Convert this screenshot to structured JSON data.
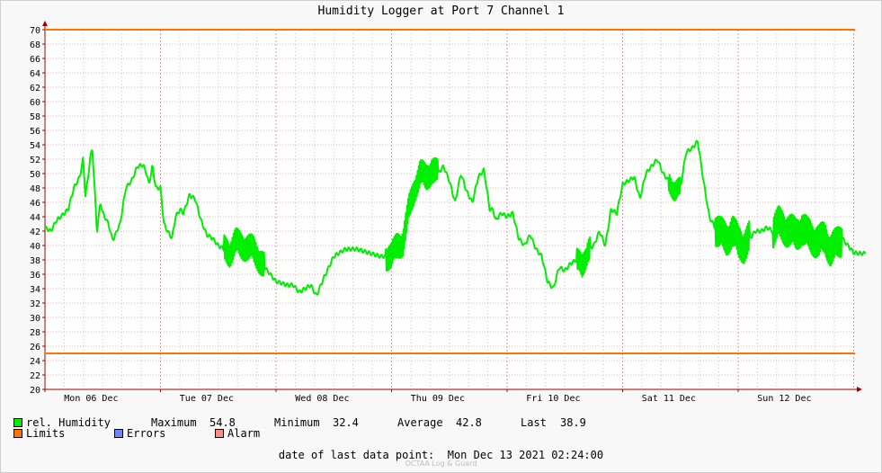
{
  "colors": {
    "background": "#f8f8f8",
    "grid_minor": "#f3b0b0",
    "grid_major": "#d8a0a0",
    "series": "#00ee00",
    "limits": "#ff7300",
    "errors": "#6f86ff",
    "alarm": "#ff8888",
    "axis": "#a00000"
  },
  "legend": {
    "humidity_label": "rel. Humidity",
    "maximum_label": "Maximum",
    "maximum_value": "54.8",
    "minimum_label": "Minimum",
    "minimum_value": "32.4",
    "average_label": "Average",
    "average_value": "42.8",
    "last_label": "Last",
    "last_value": "38.9",
    "limits_label": "Limits",
    "errors_label": "Errors",
    "alarm_label": "Alarm"
  },
  "footer": {
    "text": "date of last data point:  Mon Dec 13 2021 02:24:00",
    "watermark": "OCTAA Log & Guard"
  },
  "chart_data": {
    "type": "line",
    "title": "Humidity Logger at Port 7 Channel 1",
    "ylim": [
      20,
      70
    ],
    "y_ticks": [
      20,
      22,
      24,
      26,
      28,
      30,
      32,
      34,
      36,
      38,
      40,
      42,
      44,
      46,
      48,
      50,
      52,
      54,
      56,
      58,
      60,
      62,
      64,
      66,
      68,
      70
    ],
    "x_range_days": [
      0,
      7.1
    ],
    "day_labels": [
      "Mon 06 Dec",
      "Tue 07 Dec",
      "Wed 08 Dec",
      "Thu 09 Dec",
      "Fri 10 Dec",
      "Sat 11 Dec",
      "Sun 12 Dec"
    ],
    "grid": true,
    "limits": [
      25,
      70
    ],
    "series": [
      {
        "name": "rel. Humidity",
        "x_days": [
          0.0,
          0.05,
          0.1,
          0.15,
          0.2,
          0.25,
          0.3,
          0.33,
          0.35,
          0.37,
          0.39,
          0.41,
          0.43,
          0.45,
          0.48,
          0.5,
          0.55,
          0.58,
          0.6,
          0.62,
          0.65,
          0.7,
          0.75,
          0.8,
          0.85,
          0.88,
          0.9,
          0.93,
          0.96,
          1.0,
          1.03,
          1.06,
          1.1,
          1.13,
          1.17,
          1.2,
          1.25,
          1.3,
          1.35,
          1.4,
          1.45,
          1.5,
          1.55,
          1.6,
          1.65,
          1.7,
          1.8,
          1.9,
          2.0,
          2.1,
          2.15,
          2.2,
          2.25,
          2.3,
          2.35,
          2.4,
          2.5,
          2.6,
          2.7,
          2.8,
          2.9,
          3.0,
          3.05,
          3.1,
          3.15,
          3.2,
          3.25,
          3.3,
          3.35,
          3.4,
          3.45,
          3.5,
          3.55,
          3.6,
          3.65,
          3.7,
          3.75,
          3.8,
          3.85,
          3.88,
          3.9,
          3.95,
          4.0,
          4.05,
          4.1,
          4.15,
          4.2,
          4.25,
          4.3,
          4.35,
          4.4,
          4.45,
          4.5,
          4.55,
          4.6,
          4.65,
          4.7,
          4.75,
          4.8,
          4.85,
          4.9,
          4.95,
          5.0,
          5.05,
          5.1,
          5.15,
          5.2,
          5.25,
          5.3,
          5.35,
          5.4,
          5.45,
          5.5,
          5.55,
          5.6,
          5.65,
          5.7,
          5.75,
          5.8,
          5.85,
          5.9,
          5.95,
          6.0,
          6.05,
          6.1,
          6.15,
          6.2,
          6.25,
          6.3,
          6.35,
          6.4,
          6.45,
          6.5,
          6.55,
          6.6,
          6.65,
          6.7,
          6.75,
          6.8,
          6.85,
          6.9,
          6.95,
          7.0,
          7.05,
          7.1
        ],
        "values": [
          42.5,
          42.0,
          43.5,
          44.2,
          45.0,
          48.0,
          49.5,
          52.0,
          47.0,
          49.0,
          52.0,
          53.5,
          48.0,
          42.0,
          46.0,
          44.5,
          43.0,
          41.0,
          41.0,
          42.0,
          43.0,
          48.0,
          49.0,
          51.0,
          51.2,
          50.0,
          48.5,
          51.0,
          48.0,
          48.0,
          43.0,
          42.0,
          41.0,
          44.0,
          45.0,
          44.5,
          47.0,
          46.5,
          43.5,
          41.5,
          41.0,
          40.0,
          39.5,
          39.0,
          40.5,
          40.0,
          39.5,
          37.0,
          35.0,
          34.5,
          34.5,
          33.5,
          34.0,
          34.5,
          33.0,
          35.0,
          38.5,
          39.5,
          39.5,
          39.0,
          38.5,
          38.5,
          40.0,
          40.5,
          45.0,
          48.0,
          50.0,
          49.5,
          50.5,
          50.0,
          51.0,
          49.0,
          46.0,
          50.0,
          47.5,
          46.0,
          49.5,
          50.5,
          45.0,
          45.0,
          43.5,
          44.5,
          44.0,
          44.5,
          41.0,
          40.0,
          41.5,
          39.5,
          38.5,
          35.0,
          34.0,
          37.0,
          36.5,
          37.5,
          38.0,
          37.0,
          39.5,
          40.0,
          42.0,
          40.0,
          45.0,
          44.5,
          48.5,
          49.0,
          49.5,
          46.5,
          50.0,
          51.0,
          52.0,
          50.0,
          49.0,
          47.5,
          48.0,
          53.0,
          53.5,
          54.5,
          49.0,
          44.0,
          42.5,
          41.5,
          41.0,
          42.0,
          40.5,
          40.0,
          41.0,
          42.0,
          42.0,
          42.5,
          42.0,
          43.0,
          42.5,
          42.0,
          41.5,
          42.5,
          41.5,
          41.0,
          40.5,
          41.0,
          39.5,
          40.0,
          41.0,
          40.0,
          39.0,
          38.9,
          38.9
        ],
        "noise_spans": [
          [
            1.55,
            1.9,
            2.0
          ],
          [
            2.95,
            3.4,
            2.0
          ],
          [
            4.6,
            4.72,
            1.8
          ],
          [
            5.4,
            5.5,
            1.5
          ],
          [
            5.8,
            6.1,
            2.5
          ],
          [
            6.3,
            6.9,
            2.5
          ]
        ]
      }
    ]
  }
}
